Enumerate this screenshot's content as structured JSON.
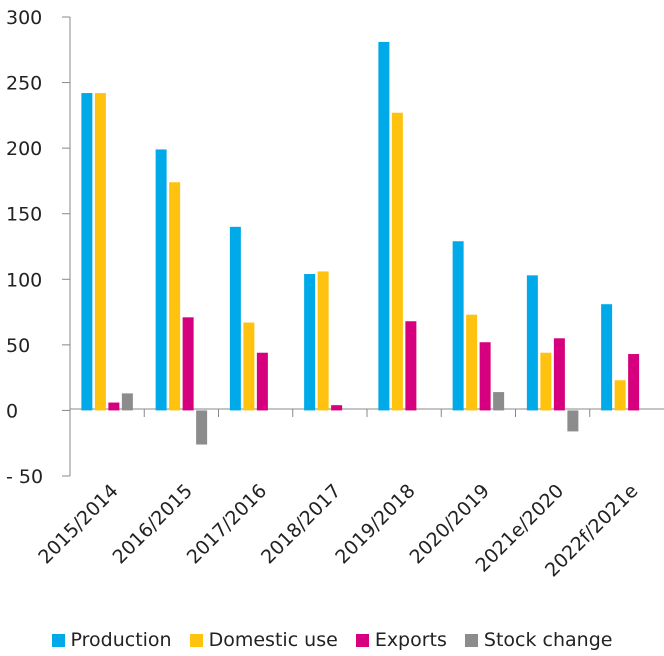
{
  "chart_data": {
    "type": "bar",
    "title": "",
    "xlabel": "",
    "ylabel": "",
    "ylim": [
      -50,
      300
    ],
    "yticks": [
      {
        "value": 300,
        "label": "300"
      },
      {
        "value": 250,
        "label": "250"
      },
      {
        "value": 200,
        "label": "200"
      },
      {
        "value": 150,
        "label": "150"
      },
      {
        "value": 100,
        "label": "100"
      },
      {
        "value": 50,
        "label": "50"
      },
      {
        "value": 0,
        "label": "0"
      },
      {
        "value": -50,
        "label": "- 50"
      }
    ],
    "grid": false,
    "legend_position": "bottom",
    "categories": [
      "2015/2014",
      "2016/2015",
      "2017/2016",
      "2018/2017",
      "2019/2018",
      "2020/2019",
      "2021e/2020",
      "2022f/2021e"
    ],
    "series": [
      {
        "name": "Production",
        "color": "#00a9e8",
        "values": [
          242,
          199,
          140,
          104,
          281,
          129,
          103,
          81
        ]
      },
      {
        "name": "Domestic use",
        "color": "#ffc20e",
        "values": [
          242,
          174,
          67,
          106,
          227,
          73,
          44,
          23
        ]
      },
      {
        "name": "Exports",
        "color": "#d6007e",
        "values": [
          6,
          71,
          44,
          4,
          68,
          52,
          55,
          43
        ]
      },
      {
        "name": "Stock change",
        "color": "#8c8c8c",
        "values": [
          13,
          -26,
          0,
          0,
          0,
          14,
          -16,
          0
        ]
      }
    ]
  }
}
